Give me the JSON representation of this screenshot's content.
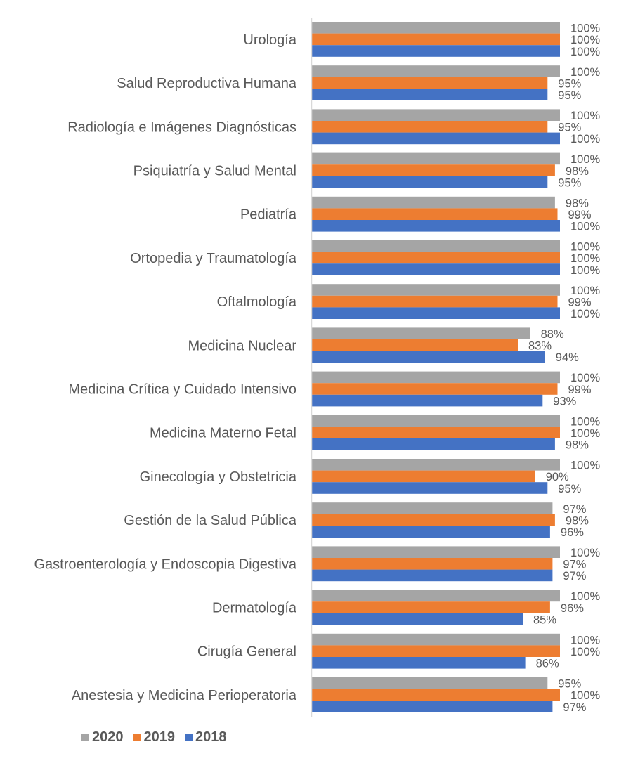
{
  "chart_data": {
    "type": "bar",
    "orientation": "horizontal",
    "categories": [
      "Urología",
      "Salud Reproductiva Humana",
      "Radiología e Imágenes Diagnósticas",
      "Psiquiatría y Salud Mental",
      "Pediatría",
      "Ortopedia y Traumatología",
      "Oftalmología",
      "Medicina Nuclear",
      "Medicina Crítica y Cuidado Intensivo",
      "Medicina Materno Fetal",
      "Ginecología y Obstetricia",
      "Gestión de la Salud Pública",
      "Gastroenterología y Endoscopia Digestiva",
      "Dermatología",
      "Cirugía General",
      "Anestesia y Medicina Perioperatoria"
    ],
    "series": [
      {
        "name": "2020",
        "color": "#A5A5A5",
        "values": [
          100,
          100,
          100,
          100,
          98,
          100,
          100,
          88,
          100,
          100,
          100,
          97,
          100,
          100,
          100,
          95
        ],
        "labels": [
          "100%",
          "100%",
          "100%",
          "100%",
          "98%",
          "100%",
          "100%",
          "88%",
          "100%",
          "100%",
          "100%",
          "97%",
          "100%",
          "100%",
          "100%",
          "95%"
        ]
      },
      {
        "name": "2019",
        "color": "#ED7D31",
        "values": [
          100,
          95,
          95,
          98,
          99,
          100,
          99,
          83,
          99,
          100,
          90,
          98,
          97,
          96,
          100,
          100
        ],
        "labels": [
          "100%",
          "95%",
          "95%",
          "98%",
          "99%",
          "100%",
          "99%",
          "83%",
          "99%",
          "100%",
          "90%",
          "98%",
          "97%",
          "96%",
          "100%",
          "100%"
        ]
      },
      {
        "name": "2018",
        "color": "#4472C4",
        "values": [
          100,
          95,
          100,
          95,
          100,
          100,
          100,
          94,
          93,
          98,
          95,
          96,
          97,
          85,
          86,
          97
        ],
        "labels": [
          "100%",
          "95%",
          "100%",
          "95%",
          "100%",
          "100%",
          "100%",
          "94%",
          "93%",
          "98%",
          "95%",
          "96%",
          "97%",
          "85%",
          "86%",
          "97%"
        ]
      }
    ],
    "xlim": [
      0,
      100
    ],
    "value_format": "percent",
    "grid": false,
    "legend": [
      "2020",
      "2019",
      "2018"
    ],
    "legend_position": "bottom-left",
    "title": "",
    "xlabel": "",
    "ylabel": ""
  },
  "colors": {
    "text": "#595959",
    "axis": "#D9D9D9"
  }
}
